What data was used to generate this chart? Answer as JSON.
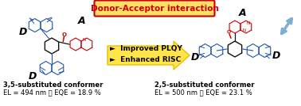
{
  "title_box_text": "Donor-Acceptor interaction",
  "title_box_color": "#FFE066",
  "title_text_color": "#CC0000",
  "title_edge_color": "#CC0000",
  "arrow_fill_color": "#FFE44A",
  "arrow_edge_color": "#E8C200",
  "bullet1": "►  Improved PLQY",
  "bullet2": "►  Enhanced RISC",
  "left_label": "3,5-substituted conformer",
  "left_data": "EL = 494 nm ； EQE = 18.9 %",
  "right_label": "2,5-substituted conformer",
  "right_data": "EL = 500 nm ； EQE = 23.1 %",
  "bg_color": "#FFFFFF",
  "mol_blue": "#2255AA",
  "mol_red": "#CC0000",
  "mol_black": "#111111",
  "label_A_italic": true,
  "label_D_italic": true,
  "double_arrow_color": "#7BAFD4",
  "text_color": "#000000",
  "bullet_fontsize": 6.5,
  "label_fontsize": 6.0,
  "data_fontsize": 6.0,
  "title_fontsize": 7.5
}
